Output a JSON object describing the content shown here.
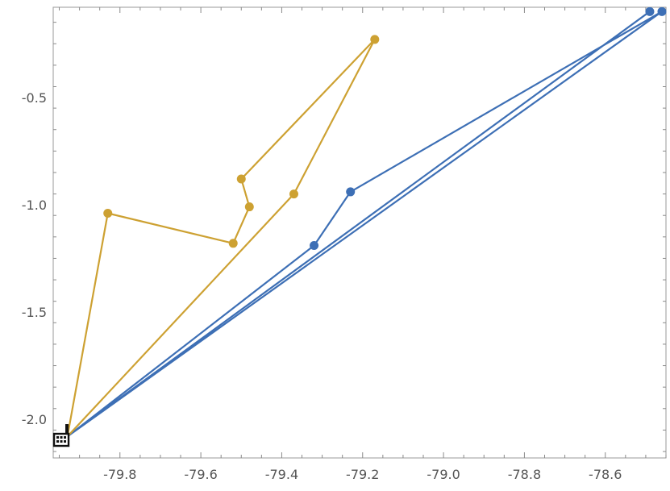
{
  "chart_data": {
    "type": "line",
    "title": "",
    "xlabel": "",
    "ylabel": "",
    "xlim": [
      -79.965,
      -78.45
    ],
    "ylim": [
      -2.18,
      -0.08
    ],
    "xticks": [
      -79.8,
      -79.6,
      -79.4,
      -79.2,
      -79.0,
      -78.8,
      -78.6
    ],
    "xtick_labels": [
      "-79.8",
      "-79.6",
      "-79.4",
      "-79.2",
      "-79.0",
      "-78.8",
      "-78.6"
    ],
    "yticks": [
      -0.5,
      -1.0,
      -1.5,
      -2.0
    ],
    "ytick_labels": [
      "-0.5",
      "-1.0",
      "-1.5",
      "-2.0"
    ],
    "grid": false,
    "series": [
      {
        "color": "#3d6fb5",
        "x": [
          -79.93,
          -79.32,
          -79.23,
          -78.46,
          -79.93,
          -78.49,
          -79.93
        ],
        "y": [
          -2.08,
          -1.19,
          -0.94,
          -0.1,
          -2.08,
          -0.1,
          -2.08
        ],
        "markers": [
          {
            "x": -79.32,
            "y": -1.19
          },
          {
            "x": -79.23,
            "y": -0.94
          },
          {
            "x": -78.49,
            "y": -0.1
          },
          {
            "x": -78.46,
            "y": -0.1
          }
        ]
      },
      {
        "color": "#cda132",
        "x": [
          -79.93,
          -79.83,
          -79.52,
          -79.48,
          -79.5,
          -79.17,
          -79.37,
          -79.93
        ],
        "y": [
          -2.08,
          -1.04,
          -1.18,
          -1.01,
          -0.88,
          -0.23,
          -0.95,
          -2.08
        ],
        "markers": [
          {
            "x": -79.83,
            "y": -1.04
          },
          {
            "x": -79.52,
            "y": -1.18
          },
          {
            "x": -79.48,
            "y": -1.01
          },
          {
            "x": -79.5,
            "y": -0.88
          },
          {
            "x": -79.17,
            "y": -0.23
          },
          {
            "x": -79.37,
            "y": -0.95
          }
        ]
      }
    ],
    "depot_marker": {
      "x": -79.945,
      "y": -2.105,
      "icon": "building-icon"
    }
  }
}
